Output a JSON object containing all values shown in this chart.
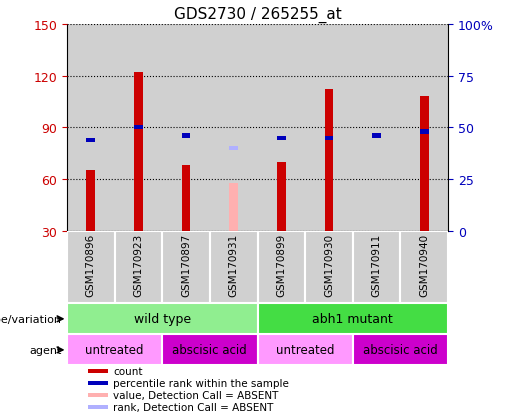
{
  "title": "GDS2730 / 265255_at",
  "samples": [
    "GSM170896",
    "GSM170923",
    "GSM170897",
    "GSM170931",
    "GSM170899",
    "GSM170930",
    "GSM170911",
    "GSM170940"
  ],
  "count_values": [
    65,
    122,
    68,
    null,
    70,
    112,
    30,
    108
  ],
  "rank_values": [
    44,
    50,
    46,
    null,
    45,
    45,
    46,
    48
  ],
  "absent_value": 58,
  "absent_rank": 40,
  "absent_index": 3,
  "ylim_left": [
    30,
    150
  ],
  "ylim_right": [
    0,
    100
  ],
  "yticks_left": [
    30,
    60,
    90,
    120,
    150
  ],
  "yticks_right": [
    0,
    25,
    50,
    75,
    100
  ],
  "bar_color_red": "#cc0000",
  "bar_color_blue": "#0000bb",
  "bar_color_absent_val": "#ffb0b0",
  "bar_color_absent_rank": "#b0b0ff",
  "bar_width": 0.18,
  "rank_bar_width": 0.18,
  "rank_bar_height": 2.5,
  "col_bg_color": "#d0d0d0",
  "genotype_color_wild": "#90ee90",
  "genotype_color_abh1": "#44dd44",
  "agent_color_untreated": "#ff99ff",
  "agent_color_abscisic": "#cc00cc",
  "tick_color_left": "#cc0000",
  "tick_color_right": "#0000bb",
  "legend_items": [
    [
      "#cc0000",
      "count"
    ],
    [
      "#0000bb",
      "percentile rank within the sample"
    ],
    [
      "#ffb0b0",
      "value, Detection Call = ABSENT"
    ],
    [
      "#b0b0ff",
      "rank, Detection Call = ABSENT"
    ]
  ]
}
